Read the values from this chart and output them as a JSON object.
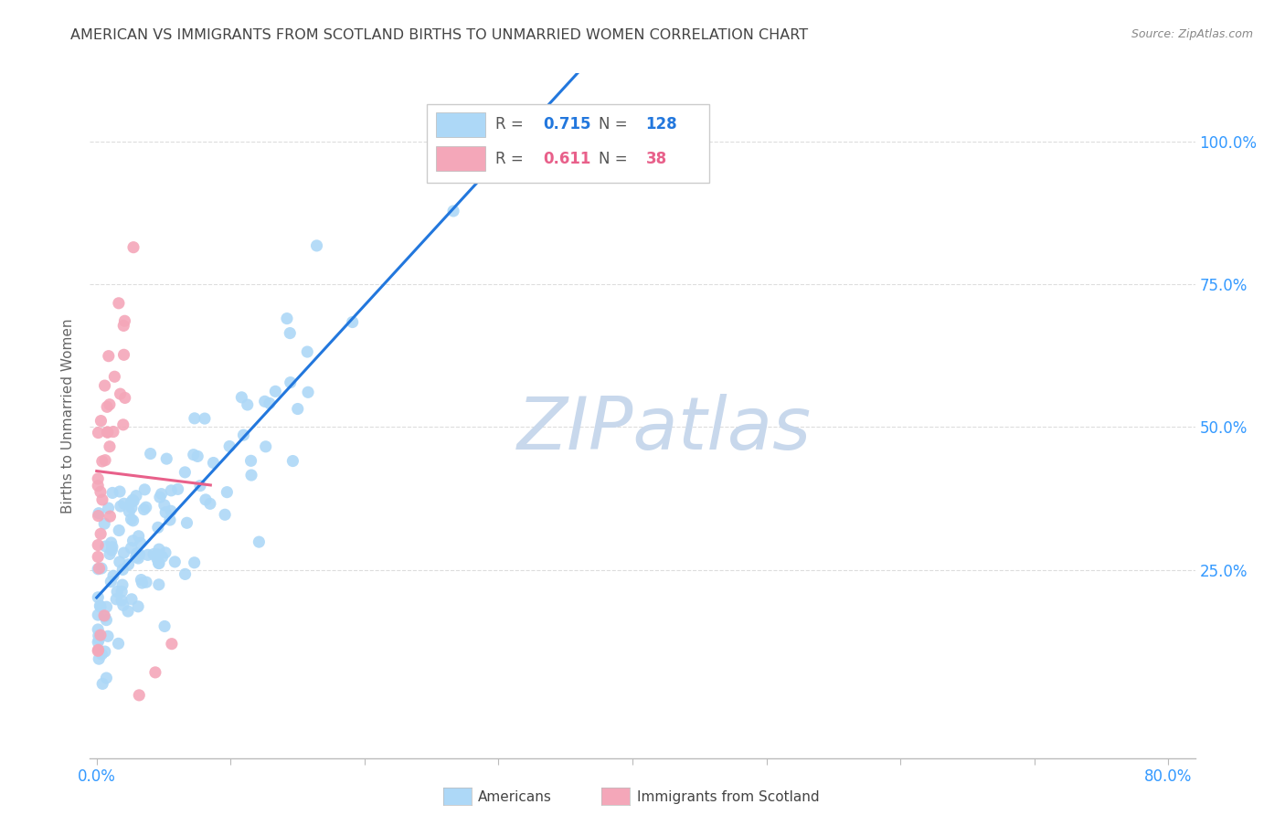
{
  "title": "AMERICAN VS IMMIGRANTS FROM SCOTLAND BIRTHS TO UNMARRIED WOMEN CORRELATION CHART",
  "source": "Source: ZipAtlas.com",
  "ylabel": "Births to Unmarried Women",
  "yticks": [
    0.0,
    0.25,
    0.5,
    0.75,
    1.0
  ],
  "ytick_labels": [
    "",
    "25.0%",
    "50.0%",
    "75.0%",
    "100.0%"
  ],
  "xlim": [
    -0.005,
    0.82
  ],
  "ylim": [
    -0.08,
    1.12
  ],
  "R_american": 0.715,
  "N_american": 128,
  "R_scotland": 0.611,
  "N_scotland": 38,
  "color_american": "#ADD8F7",
  "color_scotland": "#F4A7B9",
  "trendline_american": "#2277DD",
  "trendline_scotland": "#E8608A",
  "watermark": "ZIPatlas",
  "watermark_color": "#C8D8EC",
  "background_color": "#FFFFFF",
  "grid_color": "#DDDDDD",
  "title_color": "#444444",
  "axis_label_color": "#3399FF",
  "seed_am": 12,
  "seed_sc": 99
}
